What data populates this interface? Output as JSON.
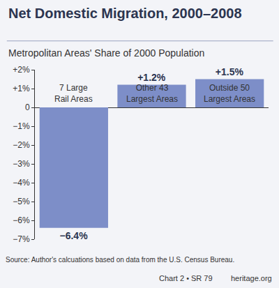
{
  "chart_data": {
    "type": "bar",
    "title": "Net Domestic Migration, 2000–2008",
    "subtitle": "Metropolitan Areas' Share of 2000 Population",
    "categories": [
      "7 Large Rail Areas",
      "Other 43 Largest Areas",
      "Outside 50 Largest Areas"
    ],
    "values": [
      -6.4,
      1.2,
      1.5
    ],
    "value_labels": [
      "−6.4%",
      "+1.2%",
      "+1.5%"
    ],
    "data_labels": true,
    "color": "#7d8ec8",
    "ylim": [
      -7,
      2
    ],
    "yticks": [
      {
        "value": 2,
        "label": "+2%"
      },
      {
        "value": 1,
        "label": "+1%"
      },
      0,
      {
        "value": -1,
        "label": "−1%"
      },
      {
        "value": -2,
        "label": "−2%"
      },
      {
        "value": -3,
        "label": "−3%"
      },
      {
        "value": -4,
        "label": "−4%"
      },
      {
        "value": -5,
        "label": "−5%"
      },
      {
        "value": -6,
        "label": "−6%"
      },
      {
        "value": -7,
        "label": "−7%"
      }
    ],
    "grid": false,
    "source": "Source: Author's calcuations based on data from the U.S. Census Bureau.",
    "footer": [
      "Chart 2 • SR 79",
      "heritage.org"
    ]
  }
}
